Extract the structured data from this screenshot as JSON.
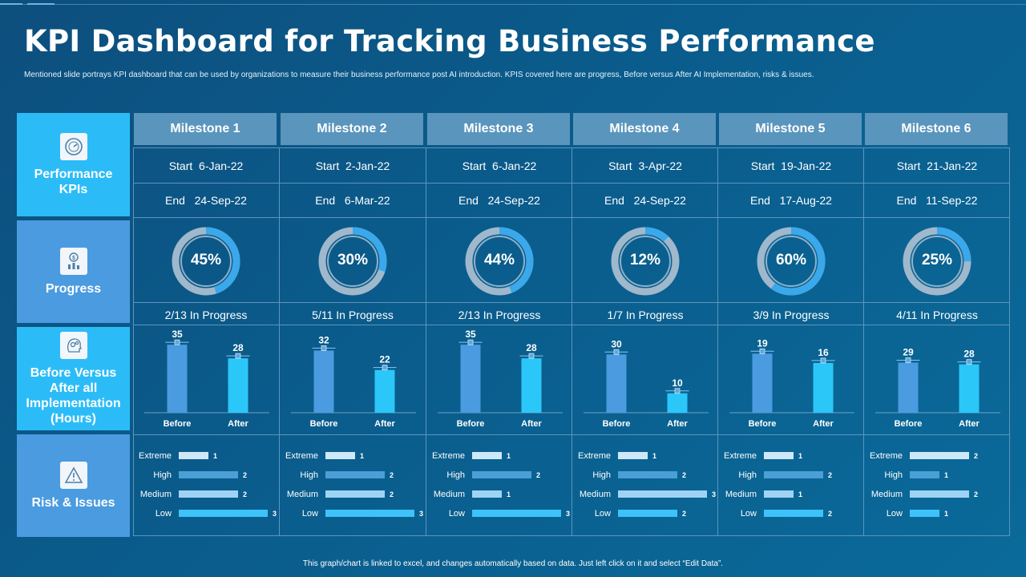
{
  "title": "KPI Dashboard for Tracking Business Performance",
  "subtitle": "Mentioned slide portrays KPI dashboard that can be used by organizations to measure their business performance post AI introduction. KPIS covered here are progress, Before versus After AI Implementation, risks & issues.",
  "footer": "This graph/chart is linked to excel, and changes automatically based on data. Just left click on it and select “Edit Data”.",
  "row_labels": {
    "performance": {
      "label": "Performance KPIs",
      "icon": "speedometer-icon"
    },
    "progress": {
      "label": "Progress",
      "icon": "money-chart-icon"
    },
    "before_after": {
      "label": "Before Versus After all Implementation (Hours)",
      "icon": "gears-head-icon"
    },
    "risk": {
      "label": "Risk & Issues",
      "icon": "warning-icon"
    }
  },
  "colors": {
    "label_bright": "#2bbcf7",
    "label_mid": "#4a9be0",
    "bar_before": "#4a9be0",
    "bar_after": "#2bc7f9",
    "donut_track": "#9fb8cc",
    "donut_fill": "#3aa8ea"
  },
  "bar_labels": {
    "before": "Before",
    "after": "After"
  },
  "risk_levels": [
    "Extreme",
    "High",
    "Medium",
    "Low"
  ],
  "start_prefix": "Start",
  "end_prefix": "End",
  "milestones": [
    {
      "name": "Milestone 1",
      "start": "6-Jan-22",
      "end": "24-Sep-22",
      "progress_label": "45%",
      "progress": 45,
      "status": "2/13 In Progress"
    },
    {
      "name": "Milestone 2",
      "start": "2-Jan-22",
      "end": "6-Mar-22",
      "progress_label": "30%",
      "progress": 30,
      "status": "5/11 In Progress"
    },
    {
      "name": "Milestone 3",
      "start": "6-Jan-22",
      "end": "24-Sep-22",
      "progress_label": "44%",
      "progress": 44,
      "status": "2/13 In Progress"
    },
    {
      "name": "Milestone 4",
      "start": "3-Apr-22",
      "end": "24-Sep-22",
      "progress_label": "12%",
      "progress": 12,
      "status": "1/7 In Progress"
    },
    {
      "name": "Milestone 5",
      "start": "19-Jan-22",
      "end": "17-Aug-22",
      "progress_label": "60%",
      "progress": 60,
      "status": "3/9 In Progress"
    },
    {
      "name": "Milestone 6",
      "start": "21-Jan-22",
      "end": "11-Sep-22",
      "progress_label": "25%",
      "progress": 25,
      "status": "4/11 In Progress"
    }
  ],
  "chart_data": [
    {
      "type": "bar",
      "milestone": "Milestone 1",
      "categories": [
        "Before",
        "After"
      ],
      "values": [
        35,
        28
      ],
      "ylim": [
        0,
        40
      ]
    },
    {
      "type": "bar",
      "milestone": "Milestone 2",
      "categories": [
        "Before",
        "After"
      ],
      "values": [
        32,
        22
      ],
      "ylim": [
        0,
        40
      ]
    },
    {
      "type": "bar",
      "milestone": "Milestone 3",
      "categories": [
        "Before",
        "After"
      ],
      "values": [
        35,
        28
      ],
      "ylim": [
        0,
        40
      ]
    },
    {
      "type": "bar",
      "milestone": "Milestone 4",
      "categories": [
        "Before",
        "After"
      ],
      "values": [
        30,
        10
      ],
      "ylim": [
        0,
        40
      ]
    },
    {
      "type": "bar",
      "milestone": "Milestone 5",
      "categories": [
        "Before",
        "After"
      ],
      "values": [
        19,
        16
      ],
      "ylim": [
        0,
        25
      ]
    },
    {
      "type": "bar",
      "milestone": "Milestone 6",
      "categories": [
        "Before",
        "After"
      ],
      "values": [
        29,
        28
      ],
      "ylim": [
        0,
        45
      ]
    },
    {
      "type": "bar",
      "orientation": "horizontal",
      "milestone": "Milestone 1",
      "categories": [
        "Extreme",
        "High",
        "Medium",
        "Low"
      ],
      "values": [
        1,
        2,
        2,
        3
      ]
    },
    {
      "type": "bar",
      "orientation": "horizontal",
      "milestone": "Milestone 2",
      "categories": [
        "Extreme",
        "High",
        "Medium",
        "Low"
      ],
      "values": [
        1,
        2,
        2,
        3
      ]
    },
    {
      "type": "bar",
      "orientation": "horizontal",
      "milestone": "Milestone 3",
      "categories": [
        "Extreme",
        "High",
        "Medium",
        "Low"
      ],
      "values": [
        1,
        2,
        1,
        3
      ]
    },
    {
      "type": "bar",
      "orientation": "horizontal",
      "milestone": "Milestone 4",
      "categories": [
        "Extreme",
        "High",
        "Medium",
        "Low"
      ],
      "values": [
        1,
        2,
        3,
        2
      ]
    },
    {
      "type": "bar",
      "orientation": "horizontal",
      "milestone": "Milestone 5",
      "categories": [
        "Extreme",
        "High",
        "Medium",
        "Low"
      ],
      "values": [
        1,
        2,
        1,
        2
      ]
    },
    {
      "type": "bar",
      "orientation": "horizontal",
      "milestone": "Milestone 6",
      "categories": [
        "Extreme",
        "High",
        "Medium",
        "Low"
      ],
      "values": [
        2,
        1,
        2,
        1
      ]
    }
  ]
}
